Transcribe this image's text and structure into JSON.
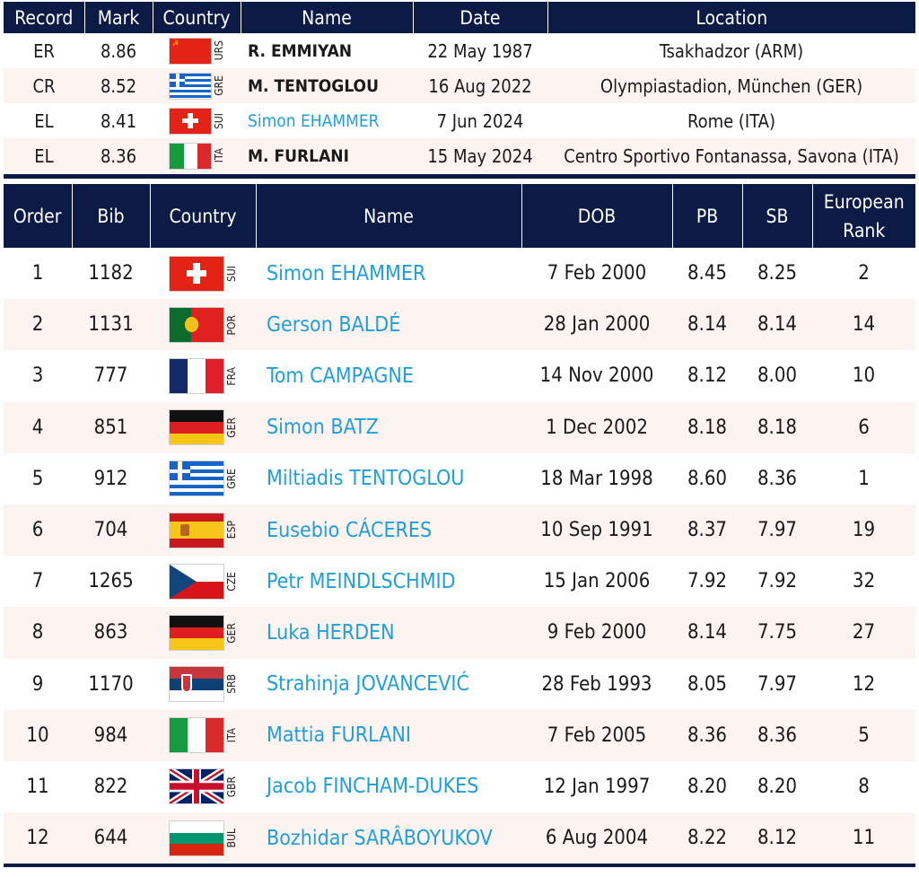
{
  "records": {
    "headers": [
      "Record",
      "Mark",
      "Country",
      "Name",
      "Date",
      "Location"
    ],
    "rows": [
      {
        "record": "ER",
        "mark": "8.86",
        "code": "URS",
        "name": "R. EMMIYAN",
        "date": "22 May 1987",
        "location": "Tsakhadzor (ARM)",
        "link": false
      },
      {
        "record": "CR",
        "mark": "8.52",
        "code": "GRE",
        "name": "M. TENTOGLOU",
        "date": "16 Aug 2022",
        "location": "Olympiastadion, München (GER)",
        "link": false
      },
      {
        "record": "EL",
        "mark": "8.41",
        "code": "SUI",
        "name": "Simon EHAMMER",
        "date": "7 Jun 2024",
        "location": "Rome (ITA)",
        "link": true
      },
      {
        "record": "EL",
        "mark": "8.36",
        "code": "ITA",
        "name": "M. FURLANI",
        "date": "15 May 2024",
        "location": "Centro Sportivo Fontanassa, Savona (ITA)",
        "link": false
      }
    ]
  },
  "startlist": {
    "headers": [
      "Order",
      "Bib",
      "Country",
      "Name",
      "DOB",
      "PB",
      "SB",
      "European Rank"
    ],
    "header_rank_line1": "European",
    "header_rank_line2": "Rank",
    "rows": [
      {
        "order": "1",
        "bib": "1182",
        "code": "SUI",
        "name": "Simon EHAMMER",
        "dob": "7 Feb 2000",
        "pb": "8.45",
        "sb": "8.25",
        "rank": "2"
      },
      {
        "order": "2",
        "bib": "1131",
        "code": "POR",
        "name": "Gerson BALDÉ",
        "dob": "28 Jan 2000",
        "pb": "8.14",
        "sb": "8.14",
        "rank": "14"
      },
      {
        "order": "3",
        "bib": "777",
        "code": "FRA",
        "name": "Tom CAMPAGNE",
        "dob": "14 Nov 2000",
        "pb": "8.12",
        "sb": "8.00",
        "rank": "10"
      },
      {
        "order": "4",
        "bib": "851",
        "code": "GER",
        "name": "Simon BATZ",
        "dob": "1 Dec 2002",
        "pb": "8.18",
        "sb": "8.18",
        "rank": "6"
      },
      {
        "order": "5",
        "bib": "912",
        "code": "GRE",
        "name": "Miltiadis TENTOGLOU",
        "dob": "18 Mar 1998",
        "pb": "8.60",
        "sb": "8.36",
        "rank": "1"
      },
      {
        "order": "6",
        "bib": "704",
        "code": "ESP",
        "name": "Eusebio CÁCERES",
        "dob": "10 Sep 1991",
        "pb": "8.37",
        "sb": "7.97",
        "rank": "19"
      },
      {
        "order": "7",
        "bib": "1265",
        "code": "CZE",
        "name": "Petr MEINDLSCHMID",
        "dob": "15 Jan 2006",
        "pb": "7.92",
        "sb": "7.92",
        "rank": "32"
      },
      {
        "order": "8",
        "bib": "863",
        "code": "GER",
        "name": "Luka HERDEN",
        "dob": "9 Feb 2000",
        "pb": "8.14",
        "sb": "7.75",
        "rank": "27"
      },
      {
        "order": "9",
        "bib": "1170",
        "code": "SRB",
        "name": "Strahinja JOVANCEVIĆ",
        "dob": "28 Feb 1993",
        "pb": "8.05",
        "sb": "7.97",
        "rank": "12"
      },
      {
        "order": "10",
        "bib": "984",
        "code": "ITA",
        "name": "Mattia FURLANI",
        "dob": "7 Feb 2005",
        "pb": "8.36",
        "sb": "8.36",
        "rank": "5"
      },
      {
        "order": "11",
        "bib": "822",
        "code": "GBR",
        "name": "Jacob FINCHAM-DUKES",
        "dob": "12 Jan 1997",
        "pb": "8.20",
        "sb": "8.20",
        "rank": "8"
      },
      {
        "order": "12",
        "bib": "644",
        "code": "BUL",
        "name": "Bozhidar SARÂBOYUKOV",
        "dob": "6 Aug 2004",
        "pb": "8.22",
        "sb": "8.12",
        "rank": "11"
      }
    ]
  },
  "colors": {
    "header_bg": "#0c1b46",
    "row_alt_bg": "#fdf3f1",
    "link": "#1e9fdc"
  }
}
